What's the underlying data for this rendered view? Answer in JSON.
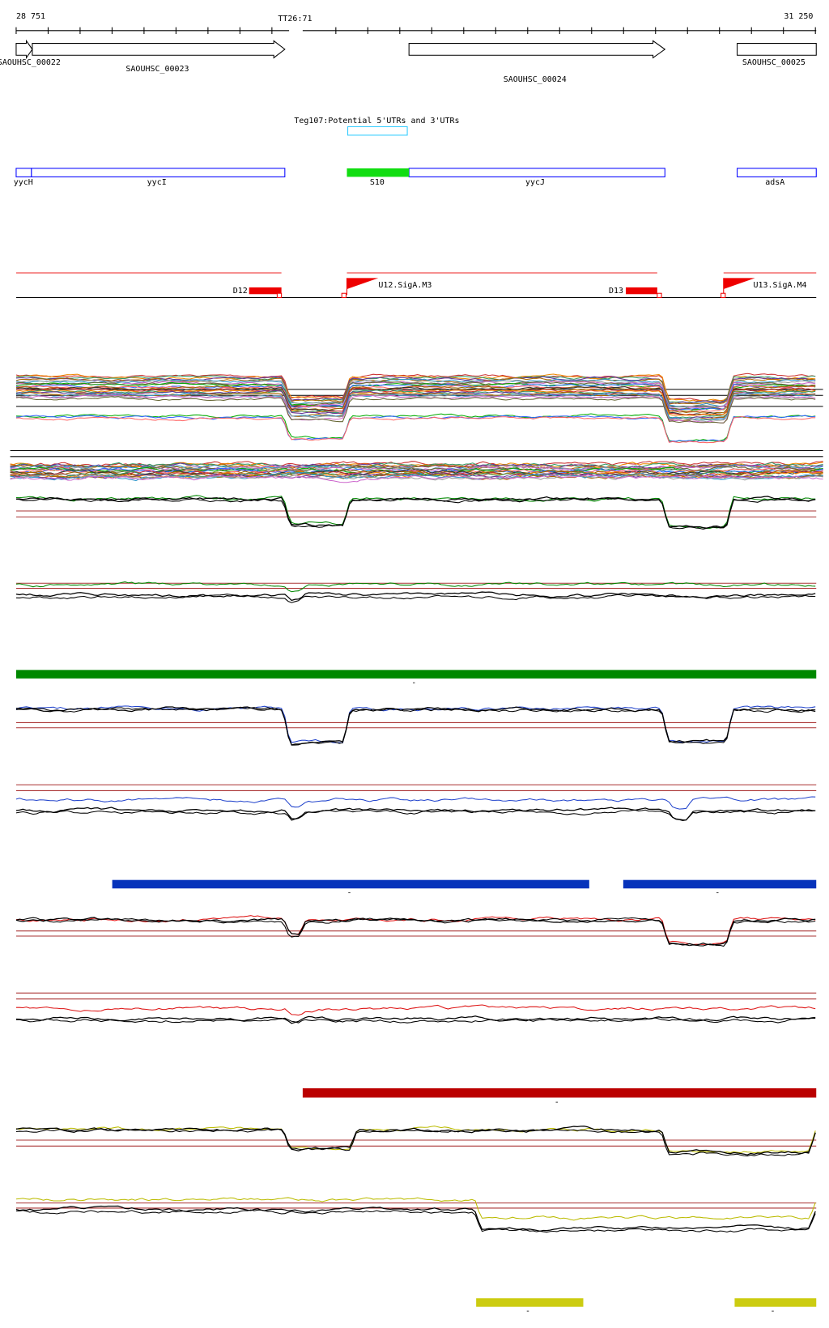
{
  "ruler": {
    "start": "28 751",
    "marker": "TT26:71",
    "end": "31 250"
  },
  "genes": [
    "SAOUHSC_00022",
    "SAOUHSC_00023",
    "SAOUHSC_00024",
    "SAOUHSC_00025"
  ],
  "track_title": "Teg107:Potential 5'UTRs and 3'UTRs",
  "features": [
    "yycH",
    "yycI",
    "S10",
    "yycJ",
    "adsA"
  ],
  "promoters": [
    "D12",
    "U12.SigA.M3",
    "D13",
    "U13.SigA.M4"
  ],
  "segment_labels": [
    "-",
    "-",
    "-",
    "-",
    "-",
    "-"
  ]
}
